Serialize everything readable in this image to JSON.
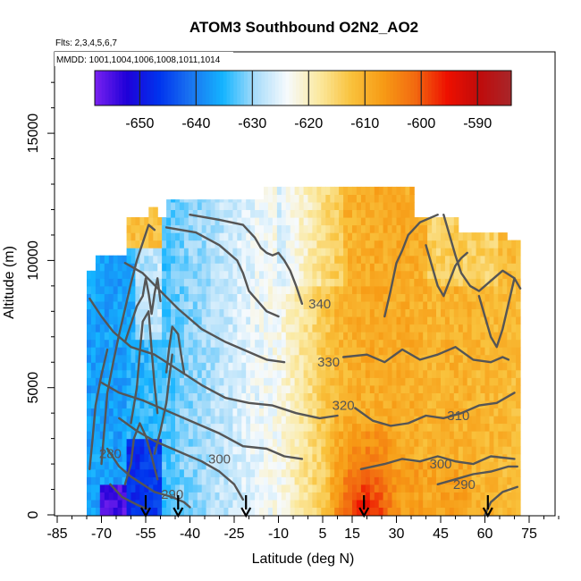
{
  "chart_data": {
    "type": "heatmap",
    "title": "ATOM3 Southbound O2N2_AO2",
    "flights_label": "Flts: 2,3,4,5,6,7",
    "mmdd_label": "MMDD: 1001,1004,1006,1008,1011,1014",
    "xlabel": "Latitude (deg N)",
    "ylabel": "Altitude (m)",
    "xlim": [
      -85,
      85
    ],
    "ylim": [
      0,
      17500
    ],
    "x_ticks": [
      -85,
      -70,
      -55,
      -40,
      -25,
      -10,
      5,
      15,
      30,
      45,
      60,
      75
    ],
    "y_ticks": [
      0,
      5000,
      10000,
      15000
    ],
    "colorbar": {
      "range": [
        -658,
        -584
      ],
      "ticks": [
        -650,
        -640,
        -630,
        -620,
        -610,
        -600,
        -590
      ],
      "colors": [
        "#7a22f0",
        "#1f00d8",
        "#0033ee",
        "#1a74f0",
        "#14b4ff",
        "#a8dcfa",
        "#f6fafd",
        "#fbe9a0",
        "#f9c23c",
        "#f79b15",
        "#f26a10",
        "#ee1000",
        "#c00b0b",
        "#a8262a"
      ]
    },
    "contour_labels": [
      {
        "value": "340",
        "lat": 4,
        "alt": 8300
      },
      {
        "value": "330",
        "lat": 7,
        "alt": 6000
      },
      {
        "value": "320",
        "lat": 12,
        "alt": 4300
      },
      {
        "value": "310",
        "lat": 51,
        "alt": 3900
      },
      {
        "value": "300",
        "lat": -30,
        "alt": 2200
      },
      {
        "value": "300",
        "lat": 45,
        "alt": 2000
      },
      {
        "value": "290",
        "lat": -46,
        "alt": 800
      },
      {
        "value": "290",
        "lat": 53,
        "alt": 1200
      },
      {
        "value": "280",
        "lat": -67,
        "alt": 2400
      }
    ],
    "profile_markers": [
      -55,
      -44,
      -21,
      19,
      61
    ]
  }
}
